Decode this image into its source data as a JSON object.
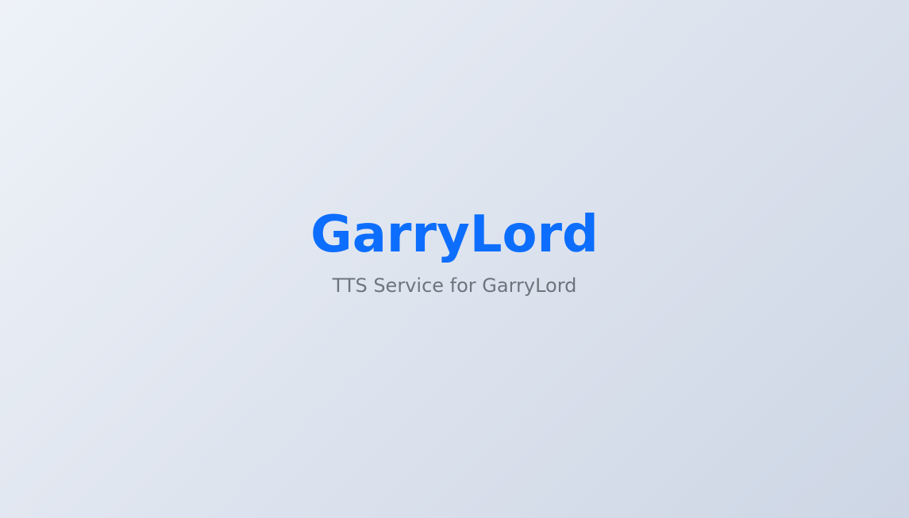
{
  "hero": {
    "title": "GarryLord",
    "subtitle": "TTS Service for GarryLord"
  },
  "colors": {
    "title": "#0d6efd",
    "subtitle": "#6c757d",
    "background_start": "#eef2f8",
    "background_end": "#cdd6e5"
  }
}
